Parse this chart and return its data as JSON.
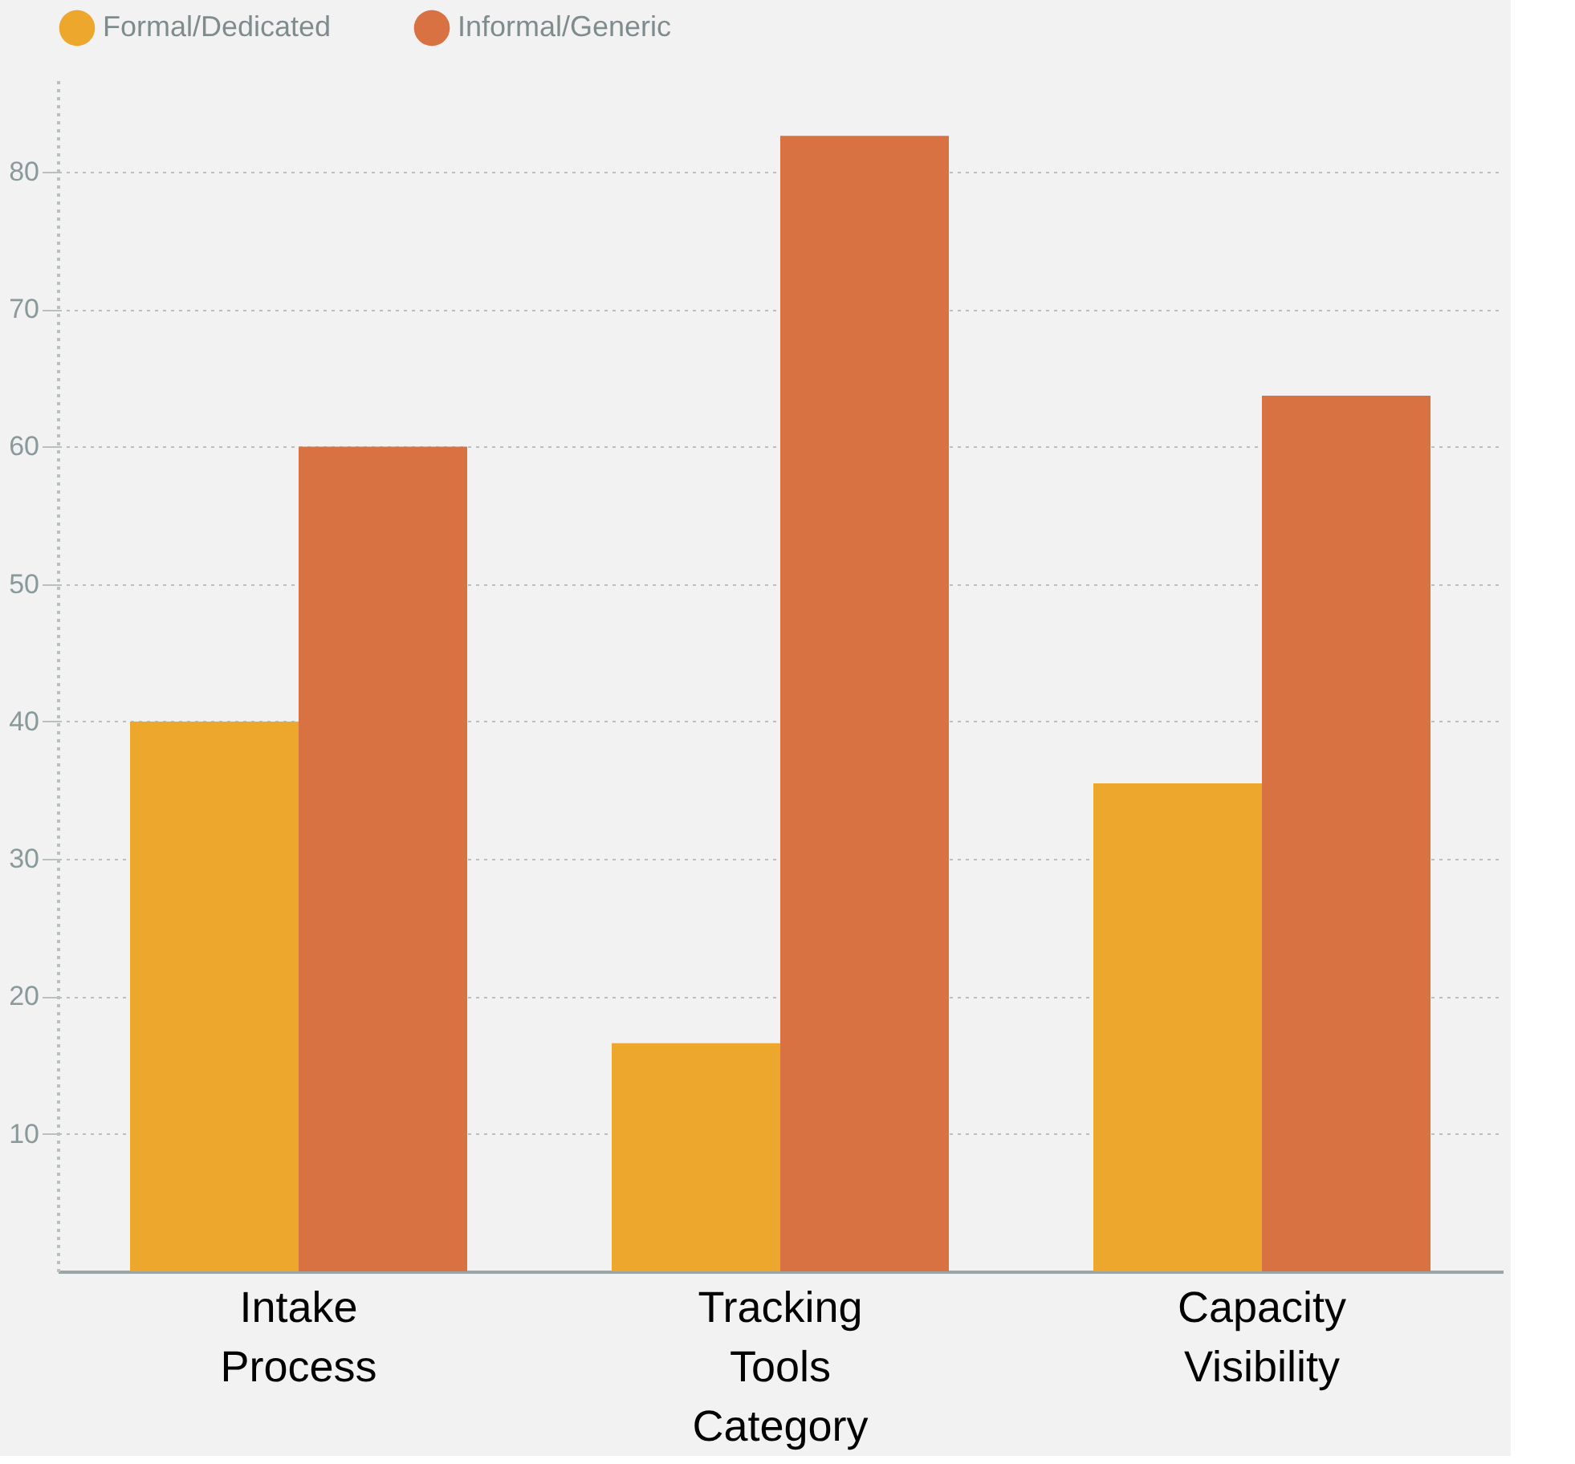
{
  "chart_data": {
    "type": "bar",
    "categories": [
      "Intake Process",
      "Tracking Tools Category",
      "Capacity Visibility"
    ],
    "series": [
      {
        "name": "Formal/Dedicated",
        "color": "#eda72d",
        "values": [
          40,
          16.6,
          35.5
        ]
      },
      {
        "name": "Informal/Generic",
        "color": "#d87243",
        "values": [
          60,
          82.6,
          63.7
        ]
      }
    ],
    "ylim": [
      0,
      87
    ],
    "yticks": [
      10,
      20,
      30,
      40,
      50,
      60,
      70,
      80
    ],
    "grid": "y",
    "legend": "top"
  }
}
